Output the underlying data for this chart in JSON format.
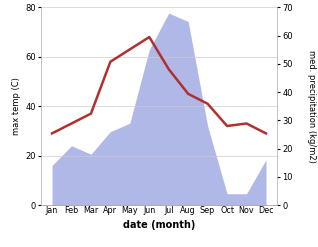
{
  "months": [
    "Jan",
    "Feb",
    "Mar",
    "Apr",
    "May",
    "Jun",
    "Jul",
    "Aug",
    "Sep",
    "Oct",
    "Nov",
    "Dec"
  ],
  "temperature": [
    29,
    33,
    37,
    58,
    63,
    68,
    55,
    45,
    41,
    32,
    33,
    29
  ],
  "precipitation": [
    14,
    21,
    18,
    26,
    29,
    55,
    68,
    65,
    28,
    4,
    4,
    16
  ],
  "temp_color": "#b03030",
  "precip_color_fill": "#b0b8e8",
  "temp_ylim": [
    0,
    80
  ],
  "precip_ylim": [
    0,
    70
  ],
  "temp_yticks": [
    0,
    20,
    40,
    60,
    80
  ],
  "precip_yticks": [
    0,
    10,
    20,
    30,
    40,
    50,
    60,
    70
  ],
  "xlabel": "date (month)",
  "ylabel_left": "max temp (C)",
  "ylabel_right": "med. precipitation (kg/m2)",
  "background_color": "#ffffff",
  "grid_color": "#cccccc"
}
